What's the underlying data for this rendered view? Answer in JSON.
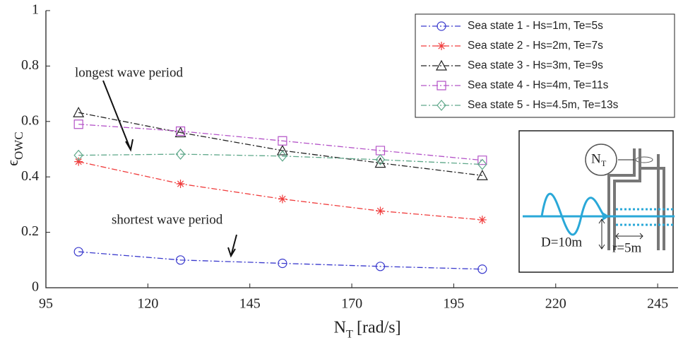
{
  "chart_data": {
    "type": "line",
    "xlabel": "N",
    "xlabel_sub": "T",
    "xlabel_unit": "[rad/s]",
    "ylabel": "ϵ",
    "ylabel_sub": "OWC",
    "x": [
      103,
      128,
      153,
      177,
      202
    ],
    "series": [
      {
        "name": "Sea state 1 - Hs=1m, Te=5s",
        "color": "#3a3acd",
        "marker": "circle",
        "values": [
          0.13,
          0.1,
          0.088,
          0.077,
          0.067
        ]
      },
      {
        "name": "Sea state 2 - Hs=2m, Te=7s",
        "color": "#f03c3c",
        "marker": "star",
        "values": [
          0.455,
          0.375,
          0.32,
          0.277,
          0.245
        ]
      },
      {
        "name": "Sea state 3 - Hs=3m, Te=9s",
        "color": "#222222",
        "marker": "triangle",
        "values": [
          0.632,
          0.56,
          0.495,
          0.45,
          0.405
        ]
      },
      {
        "name": "Sea state 4 - Hs=4m, Te=11s",
        "color": "#b453c8",
        "marker": "square",
        "values": [
          0.59,
          0.565,
          0.53,
          0.495,
          0.46
        ]
      },
      {
        "name": "Sea state 5  - Hs=4.5m, Te=13s",
        "color": "#5fa88a",
        "marker": "diamond",
        "values": [
          0.478,
          0.482,
          0.475,
          0.462,
          0.445
        ]
      }
    ],
    "xlim": [
      95,
      250
    ],
    "ylim": [
      0,
      1
    ],
    "xticks": [
      95,
      120,
      145,
      170,
      195,
      220,
      245
    ],
    "yticks": [
      0,
      0.2,
      0.4,
      0.6,
      0.8,
      1
    ],
    "legend": "top-right",
    "annotations": [
      "longest wave period",
      "shortest wave period"
    ],
    "inset": {
      "turbine": "N",
      "turbine_sub": "T",
      "depth": "D=10m",
      "radius": "r=5m"
    }
  }
}
